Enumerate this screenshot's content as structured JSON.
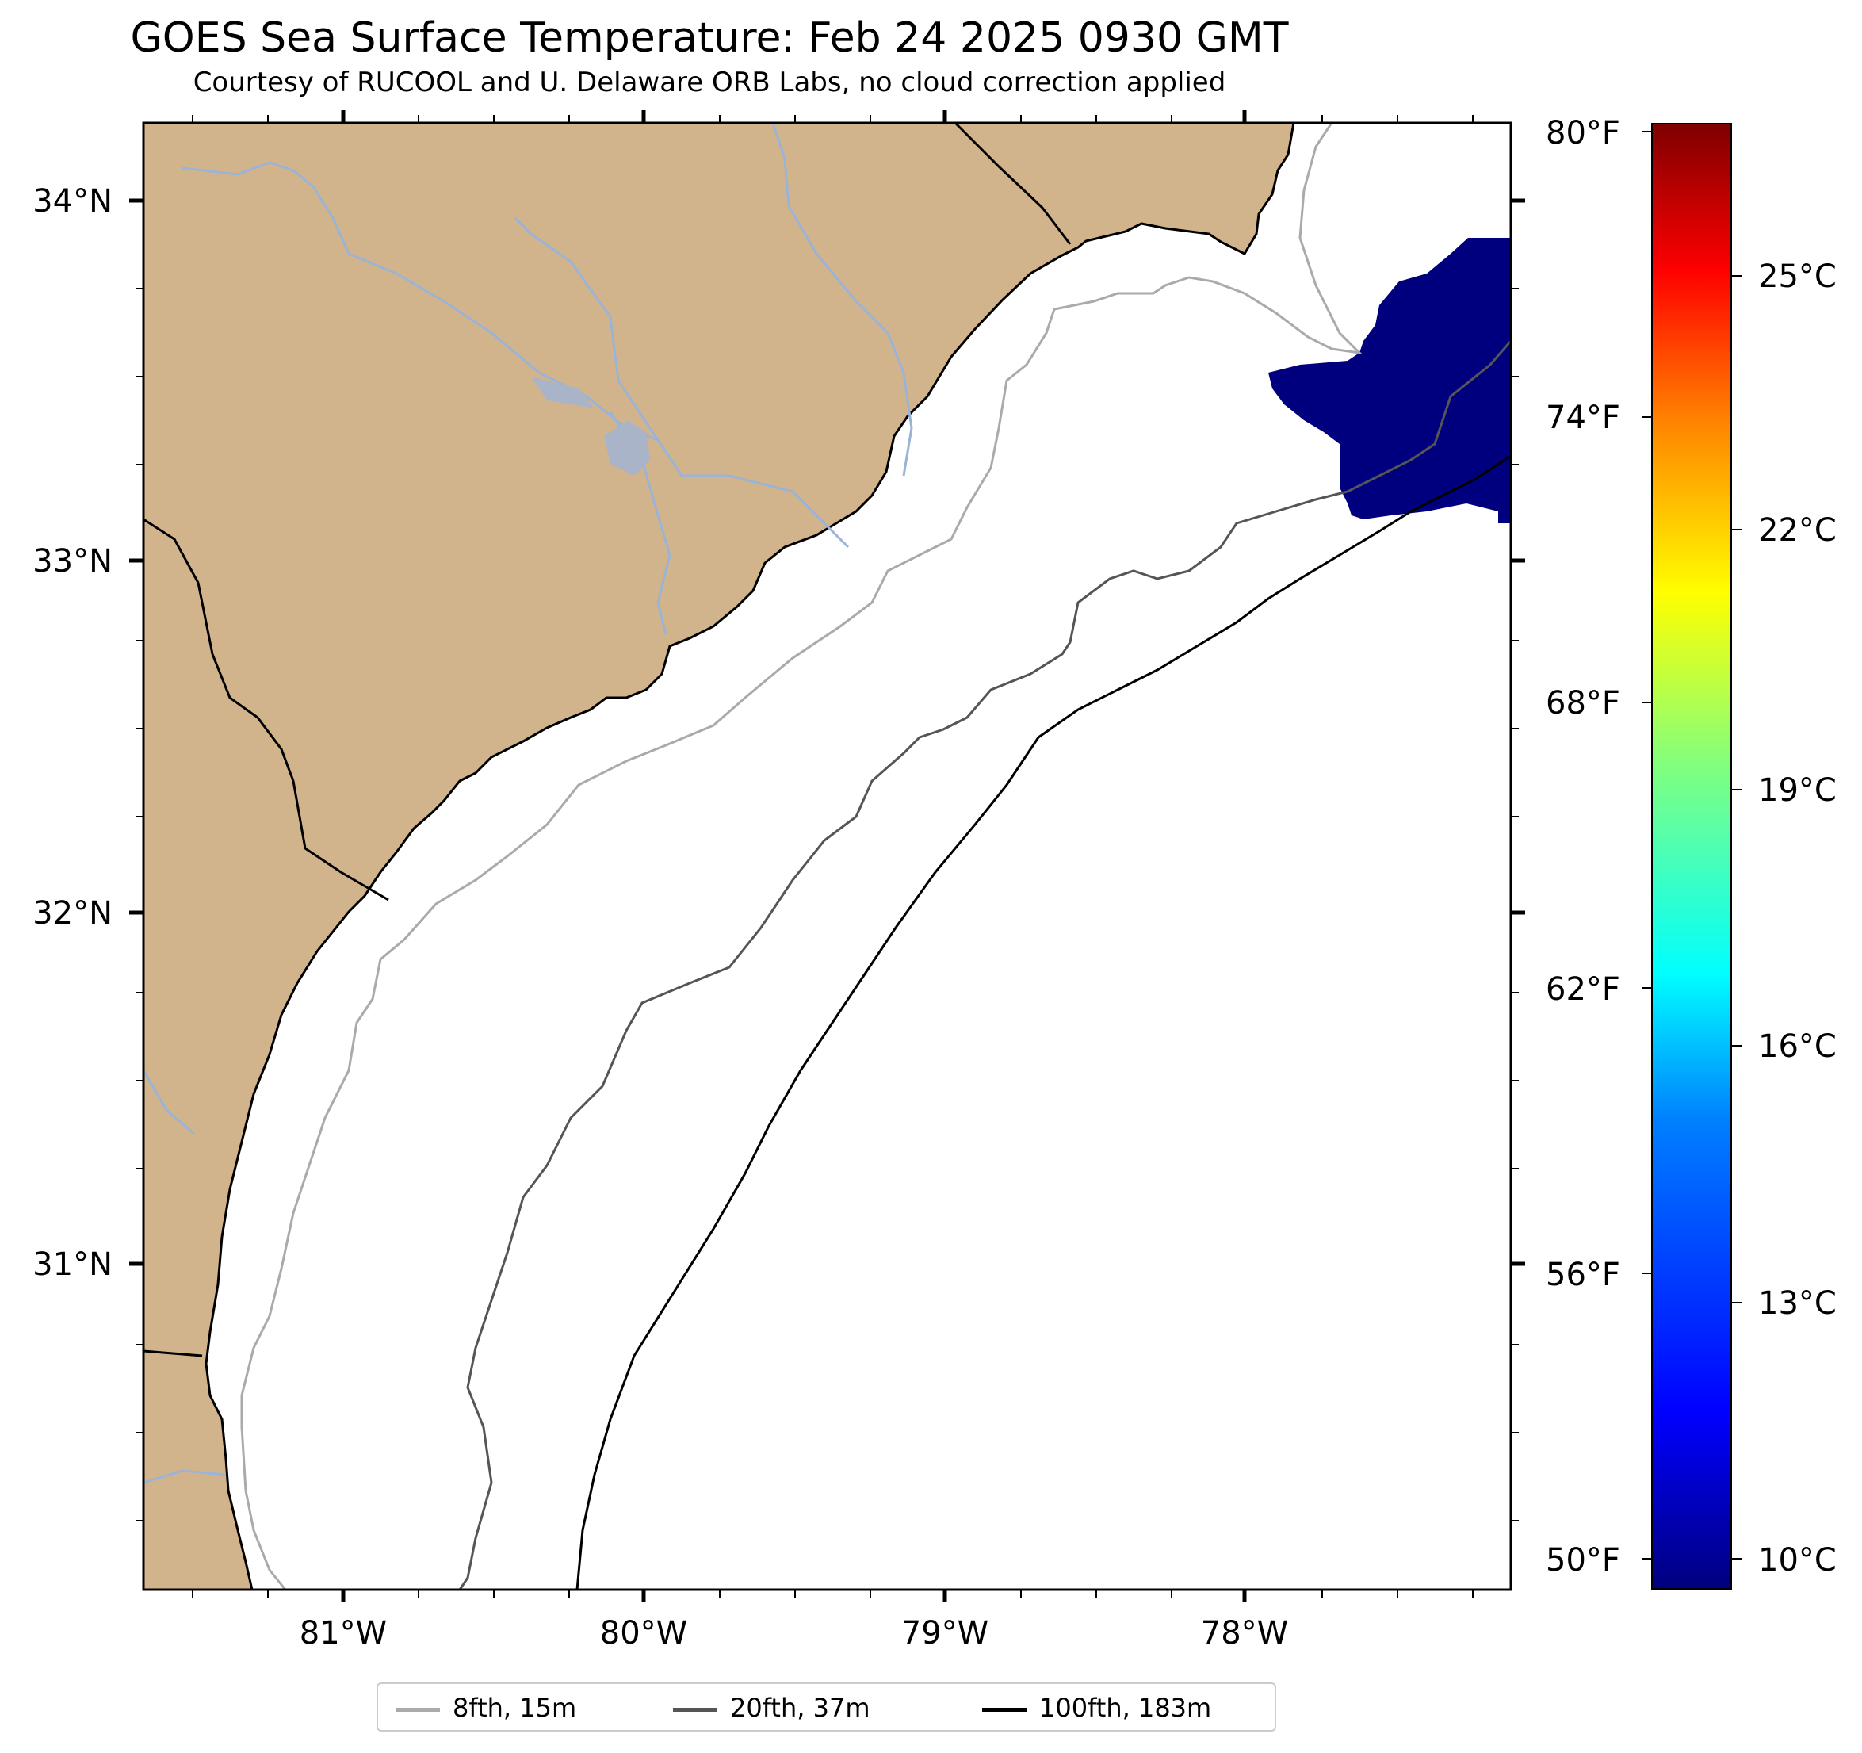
{
  "title": "GOES Sea Surface Temperature: Feb 24 2025 0930 GMT",
  "subtitle": "Courtesy of RUCOOL and U. Delaware ORB Labs, no cloud correction applied",
  "latitude_labels": [
    "34°N",
    "33°N",
    "32°N",
    "31°N"
  ],
  "longitude_labels": [
    "81°W",
    "80°W",
    "79°W",
    "78°W"
  ],
  "colorbar": {
    "fahrenheit_labels": [
      "80°F",
      "74°F",
      "68°F",
      "62°F",
      "56°F",
      "50°F"
    ],
    "celsius_labels": [
      "25°C",
      "22°C",
      "19°C",
      "16°C",
      "13°C",
      "10°C"
    ],
    "colormap": "jet",
    "low_color": "#00007f",
    "high_color": "#7f0000"
  },
  "legend": [
    {
      "label": "8fth, 15m",
      "color": "#aaaaaa"
    },
    {
      "label": "20fth, 37m",
      "color": "#555555"
    },
    {
      "label": "100fth, 183m",
      "color": "#000000"
    }
  ],
  "colors": {
    "land": "#d2b48c",
    "ocean": "#ffffff",
    "rivers": "#9ab3d6",
    "sst_patch": "#00007f"
  }
}
